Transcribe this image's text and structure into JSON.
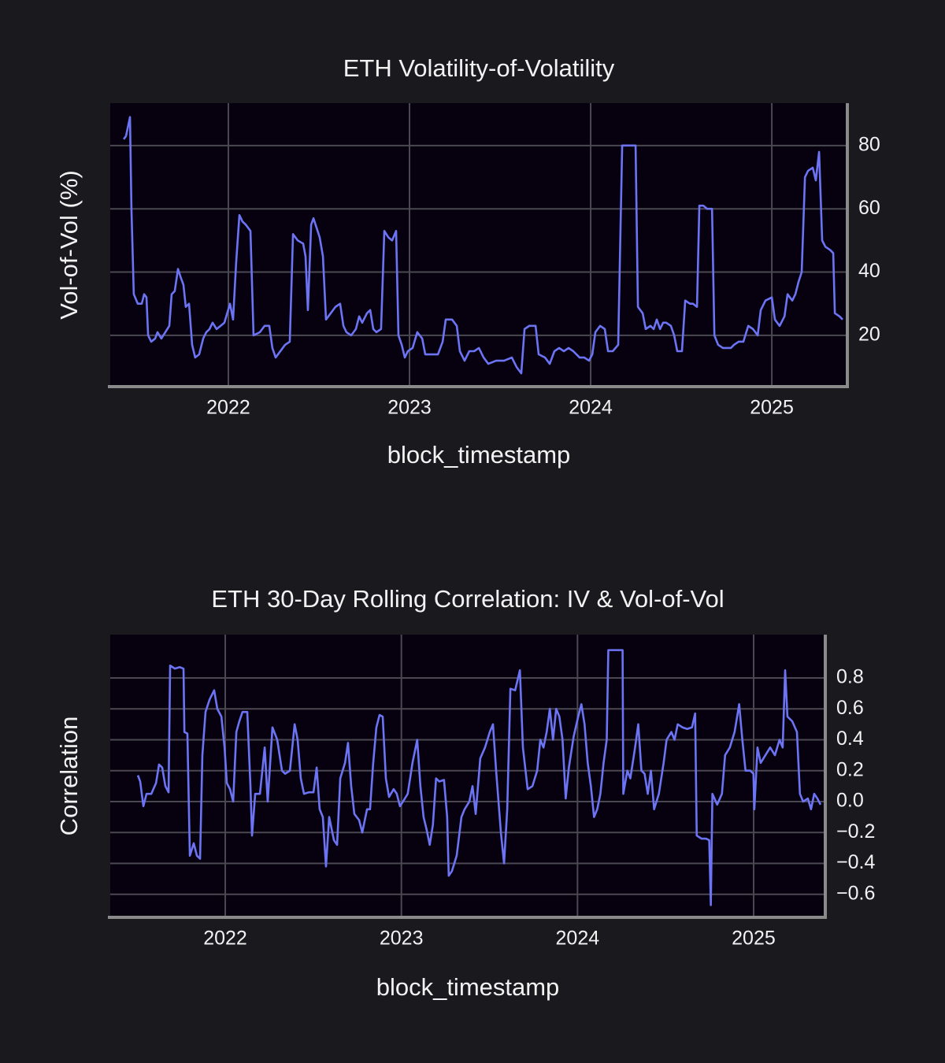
{
  "chart_data": [
    {
      "type": "line",
      "title": "ETH Volatility-of-Volatility",
      "xlabel": "block_timestamp",
      "ylabel": "Vol-of-Vol (%)",
      "color": "#6c74f4",
      "grid": true,
      "xlim": [
        2021.348,
        2025.417
      ],
      "xticks": [
        2022,
        2023,
        2024,
        2025
      ],
      "ylim": [
        3.8,
        93.4
      ],
      "yticks": [
        20,
        40,
        60,
        80
      ],
      "x": [
        2021.422,
        2021.435,
        2021.457,
        2021.465,
        2021.478,
        2021.5,
        2021.522,
        2021.535,
        2021.548,
        2021.557,
        2021.574,
        2021.596,
        2021.609,
        2021.63,
        2021.652,
        2021.674,
        2021.687,
        2021.704,
        2021.722,
        2021.739,
        2021.752,
        2021.765,
        2021.783,
        2021.8,
        2021.817,
        2021.839,
        2021.861,
        2021.878,
        2021.896,
        2021.913,
        2021.935,
        2021.957,
        2021.978,
        2022.009,
        2022.026,
        2022.043,
        2022.061,
        2022.078,
        2022.096,
        2022.122,
        2022.139,
        2022.174,
        2022.2,
        2022.226,
        2022.243,
        2022.261,
        2022.287,
        2022.313,
        2022.339,
        2022.357,
        2022.383,
        2022.413,
        2022.426,
        2022.439,
        2022.457,
        2022.47,
        2022.487,
        2022.504,
        2022.522,
        2022.539,
        2022.565,
        2022.591,
        2022.617,
        2022.635,
        2022.652,
        2022.678,
        2022.704,
        2022.722,
        2022.739,
        2022.765,
        2022.783,
        2022.8,
        2022.817,
        2022.843,
        2022.861,
        2022.883,
        2022.904,
        2022.926,
        2022.939,
        2022.957,
        2022.974,
        2022.991,
        2023.017,
        2023.043,
        2023.07,
        2023.087,
        2023.122,
        2023.157,
        2023.183,
        2023.2,
        2023.235,
        2023.261,
        2023.278,
        2023.304,
        2023.33,
        2023.357,
        2023.383,
        2023.409,
        2023.435,
        2023.478,
        2023.522,
        2023.565,
        2023.591,
        2023.617,
        2023.635,
        2023.661,
        2023.696,
        2023.713,
        2023.748,
        2023.774,
        2023.8,
        2023.826,
        2023.852,
        2023.878,
        2023.904,
        2023.939,
        2023.965,
        2023.991,
        2024.009,
        2024.026,
        2024.052,
        2024.078,
        2024.096,
        2024.122,
        2024.152,
        2024.174,
        2024.2,
        2024.226,
        2024.248,
        2024.261,
        2024.287,
        2024.304,
        2024.33,
        2024.348,
        2024.365,
        2024.383,
        2024.4,
        2024.417,
        2024.443,
        2024.461,
        2024.478,
        2024.504,
        2024.522,
        2024.548,
        2024.565,
        2024.587,
        2024.6,
        2024.622,
        2024.643,
        2024.67,
        2024.683,
        2024.704,
        2024.73,
        2024.757,
        2024.774,
        2024.791,
        2024.817,
        2024.843,
        2024.87,
        2024.896,
        2024.922,
        2024.939,
        2024.965,
        2025.0,
        2025.017,
        2025.043,
        2025.07,
        2025.087,
        2025.113,
        2025.13,
        2025.148,
        2025.165,
        2025.183,
        2025.2,
        2025.226,
        2025.243,
        2025.261,
        2025.278,
        2025.296,
        2025.322,
        2025.339,
        2025.348,
        2025.374,
        2025.391
      ],
      "values": [
        82,
        83,
        89,
        60,
        33,
        30,
        30,
        33,
        32,
        20,
        18,
        19,
        21,
        19,
        21,
        23,
        33,
        34,
        41,
        38,
        36,
        29,
        30,
        17,
        13,
        14,
        19,
        21,
        22,
        24,
        22,
        23,
        24,
        30,
        25,
        43,
        58,
        56,
        55,
        53,
        20,
        21,
        23,
        23,
        16,
        13,
        15,
        17,
        18,
        52,
        50,
        49,
        45,
        28,
        55,
        57,
        54,
        51,
        45,
        25,
        27,
        29,
        30,
        23,
        21,
        20,
        22,
        26,
        24,
        27,
        28,
        22,
        21,
        22,
        53,
        51,
        50,
        53,
        20,
        17,
        13,
        15,
        16,
        21,
        19,
        14,
        14,
        14,
        18,
        25,
        25,
        23,
        15,
        12,
        15,
        15,
        16,
        13,
        11,
        12,
        12,
        13,
        10,
        8,
        22,
        23,
        23,
        14,
        13,
        11,
        15,
        16,
        15,
        16,
        15,
        13,
        13,
        12,
        14,
        21,
        23,
        22,
        15,
        15,
        17,
        80,
        80,
        80,
        80,
        29,
        27,
        22,
        23,
        22,
        25,
        22,
        24,
        24,
        23,
        20,
        15,
        15,
        31,
        30,
        30,
        29,
        61,
        61,
        60,
        60,
        20,
        17,
        16,
        16,
        16,
        17,
        18,
        18,
        23,
        22,
        20,
        28,
        31,
        32,
        25,
        23,
        26,
        33,
        31,
        33,
        37,
        40,
        70,
        72,
        73,
        69,
        78,
        50,
        48,
        47,
        46,
        27,
        26,
        25
      ]
    },
    {
      "type": "line",
      "title": "ETH 30-Day Rolling Correlation: IV & Vol-of-Vol",
      "xlabel": "block_timestamp",
      "ylabel": "Correlation",
      "color": "#6c74f4",
      "grid": true,
      "xlim": [
        2021.347,
        2025.407
      ],
      "xticks": [
        2022,
        2023,
        2024,
        2025
      ],
      "ylim": [
        -0.749,
        1.08
      ],
      "yticks": [
        {
          "value": -0.6,
          "label": "−0.6"
        },
        {
          "value": -0.4,
          "label": "−0.4"
        },
        {
          "value": -0.2,
          "label": "−0.2"
        },
        {
          "value": 0,
          "label": "0.0"
        },
        0.2,
        0.4,
        0.6,
        0.8
      ],
      "x": [
        2021.504,
        2021.517,
        2021.535,
        2021.553,
        2021.58,
        2021.607,
        2021.624,
        2021.642,
        2021.66,
        2021.678,
        2021.687,
        2021.714,
        2021.741,
        2021.763,
        2021.768,
        2021.785,
        2021.799,
        2021.821,
        2021.839,
        2021.857,
        2021.87,
        2021.888,
        2021.911,
        2021.937,
        2021.955,
        2021.978,
        2021.996,
        2022.009,
        2022.027,
        2022.045,
        2022.063,
        2022.08,
        2022.098,
        2022.125,
        2022.143,
        2022.152,
        2022.17,
        2022.197,
        2022.224,
        2022.241,
        2022.268,
        2022.295,
        2022.322,
        2022.34,
        2022.367,
        2022.394,
        2022.411,
        2022.429,
        2022.447,
        2022.474,
        2022.501,
        2022.519,
        2022.536,
        2022.554,
        2022.572,
        2022.59,
        2022.617,
        2022.635,
        2022.653,
        2022.68,
        2022.697,
        2022.715,
        2022.733,
        2022.76,
        2022.778,
        2022.805,
        2022.822,
        2022.84,
        2022.858,
        2022.876,
        2022.894,
        2022.912,
        2022.93,
        2022.956,
        2022.974,
        2022.992,
        2023.009,
        2023.036,
        2023.063,
        2023.09,
        2023.108,
        2023.126,
        2023.143,
        2023.161,
        2023.179,
        2023.197,
        2023.215,
        2023.242,
        2023.26,
        2023.269,
        2023.287,
        2023.314,
        2023.341,
        2023.359,
        2023.386,
        2023.404,
        2023.422,
        2023.448,
        2023.475,
        2023.502,
        2023.52,
        2023.538,
        2023.565,
        2023.583,
        2023.601,
        2023.619,
        2023.646,
        2023.673,
        2023.69,
        2023.717,
        2023.744,
        2023.771,
        2023.789,
        2023.807,
        2023.825,
        2023.843,
        2023.861,
        2023.879,
        2023.897,
        2023.915,
        2023.933,
        2023.951,
        2023.978,
        2024.004,
        2024.022,
        2024.04,
        2024.058,
        2024.076,
        2024.094,
        2024.112,
        2024.13,
        2024.148,
        2024.166,
        2024.175,
        2024.202,
        2024.229,
        2024.256,
        2024.26,
        2024.283,
        2024.3,
        2024.327,
        2024.345,
        2024.363,
        2024.381,
        2024.399,
        2024.417,
        2024.435,
        2024.462,
        2024.489,
        2024.506,
        2024.533,
        2024.551,
        2024.569,
        2024.596,
        2024.623,
        2024.65,
        2024.668,
        2024.677,
        2024.704,
        2024.73,
        2024.748,
        2024.757,
        2024.766,
        2024.793,
        2024.82,
        2024.838,
        2024.865,
        2024.892,
        2024.918,
        2024.936,
        2024.954,
        2024.981,
        2024.999,
        2025.004,
        2025.022,
        2025.04,
        2025.067,
        2025.094,
        2025.121,
        2025.147,
        2025.165,
        2025.179,
        2025.192,
        2025.219,
        2025.246,
        2025.263,
        2025.281,
        2025.308,
        2025.326,
        2025.344,
        2025.362,
        2025.38
      ],
      "values": [
        0.17,
        0.13,
        -0.03,
        0.05,
        0.05,
        0.12,
        0.24,
        0.22,
        0.1,
        0.06,
        0.88,
        0.86,
        0.87,
        0.86,
        0.45,
        0.44,
        -0.35,
        -0.27,
        -0.35,
        -0.37,
        0.3,
        0.58,
        0.66,
        0.72,
        0.6,
        0.55,
        0.35,
        0.12,
        0.08,
        0.0,
        0.45,
        0.52,
        0.58,
        0.58,
        0.1,
        -0.22,
        0.05,
        0.05,
        0.35,
        0.0,
        0.48,
        0.4,
        0.2,
        0.18,
        0.2,
        0.5,
        0.4,
        0.15,
        0.05,
        0.06,
        0.06,
        0.22,
        -0.05,
        -0.1,
        -0.42,
        -0.1,
        -0.25,
        -0.28,
        0.15,
        0.25,
        0.38,
        0.1,
        -0.08,
        -0.12,
        -0.2,
        -0.05,
        -0.05,
        0.25,
        0.48,
        0.56,
        0.55,
        0.15,
        0.03,
        0.08,
        0.05,
        -0.03,
        0.0,
        0.05,
        0.25,
        0.4,
        0.1,
        -0.1,
        -0.18,
        -0.28,
        -0.15,
        0.15,
        0.13,
        0.14,
        -0.1,
        -0.48,
        -0.45,
        -0.35,
        -0.1,
        -0.05,
        0.0,
        0.1,
        -0.08,
        0.28,
        0.35,
        0.45,
        0.5,
        0.2,
        -0.2,
        -0.4,
        -0.05,
        0.73,
        0.72,
        0.85,
        0.35,
        0.08,
        0.1,
        0.2,
        0.4,
        0.35,
        0.45,
        0.6,
        0.4,
        0.6,
        0.55,
        0.4,
        0.02,
        0.22,
        0.42,
        0.55,
        0.63,
        0.5,
        0.25,
        0.1,
        -0.1,
        -0.05,
        0.05,
        0.25,
        0.4,
        0.98,
        0.98,
        0.98,
        0.98,
        0.05,
        0.2,
        0.15,
        0.35,
        0.5,
        0.2,
        0.18,
        0.05,
        0.2,
        -0.05,
        0.05,
        0.25,
        0.4,
        0.45,
        0.4,
        0.5,
        0.48,
        0.47,
        0.48,
        0.57,
        -0.22,
        -0.24,
        -0.24,
        -0.25,
        -0.67,
        0.05,
        -0.02,
        0.05,
        0.3,
        0.35,
        0.45,
        0.63,
        0.4,
        0.2,
        0.2,
        0.18,
        -0.05,
        0.35,
        0.25,
        0.3,
        0.35,
        0.3,
        0.4,
        0.35,
        0.85,
        0.55,
        0.52,
        0.45,
        0.05,
        0.0,
        0.02,
        -0.05,
        0.05,
        0.02,
        -0.02
      ]
    }
  ]
}
